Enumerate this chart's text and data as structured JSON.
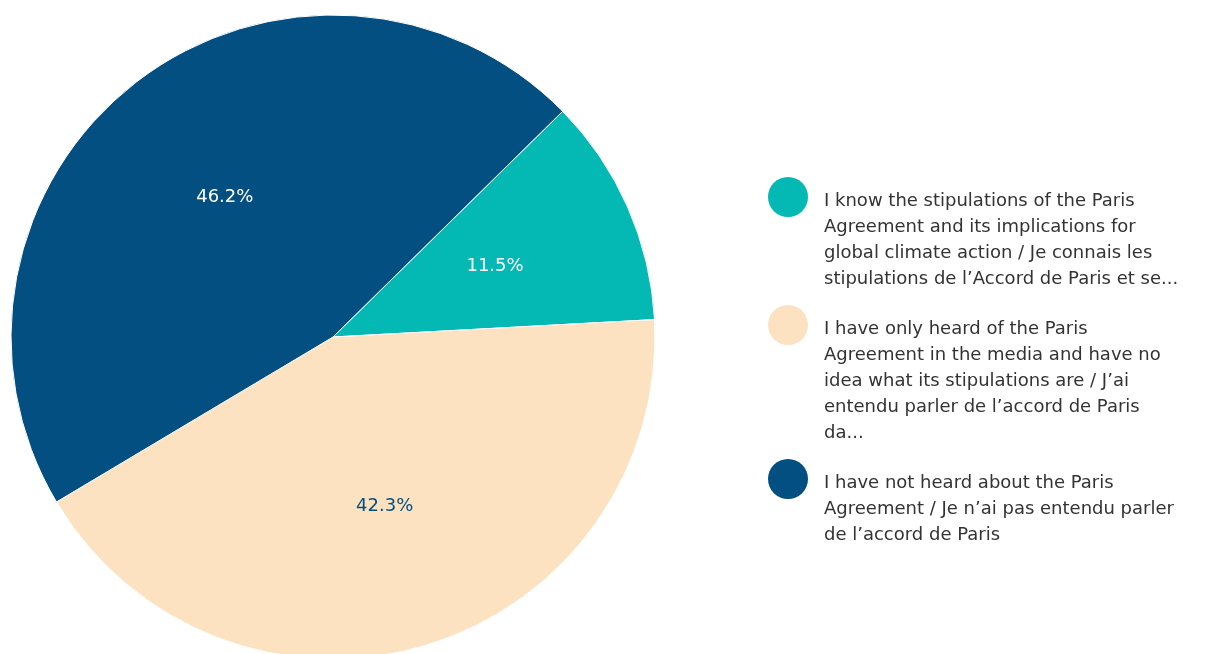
{
  "chart_data": {
    "type": "pie",
    "categories": [
      "I know the stipulations of the Paris Agreement and its implications for global climate action / Je connais les stipulations de l’Accord de Paris et se...",
      "I have only heard of the Paris Agreement in the media and have no idea what its stipulations are / J’ai entendu parler de l’accord de Paris da...",
      "I have not heard about the Paris Agreement / Je n’ai pas entendu parler de l’accord de Paris"
    ],
    "values": [
      11.5,
      42.3,
      46.2
    ],
    "colors": [
      "#04b8b4",
      "#fce2c0",
      "#034f82"
    ],
    "value_labels": [
      "11.5%",
      "42.3%",
      "46.2%"
    ],
    "legend": "right"
  }
}
